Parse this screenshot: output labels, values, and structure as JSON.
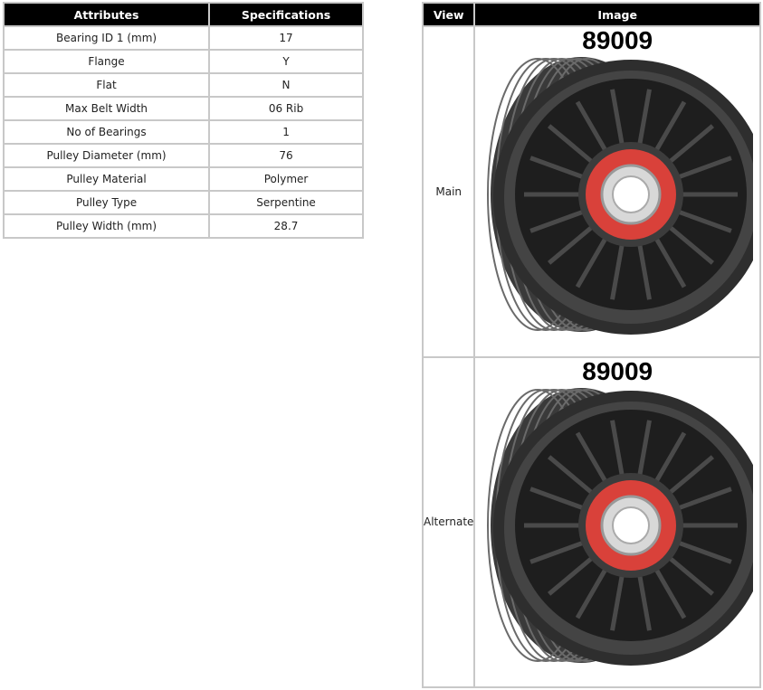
{
  "attributes_table": {
    "headers": [
      "Attributes",
      "Specifications"
    ],
    "rows": [
      [
        "Bearing ID 1 (mm)",
        "17"
      ],
      [
        "Flange",
        "Y"
      ],
      [
        "Flat",
        "N"
      ],
      [
        "Max Belt Width",
        "06 Rib"
      ],
      [
        "No of Bearings",
        "1"
      ],
      [
        "Pulley Diameter (mm)",
        "76"
      ],
      [
        "Pulley Material",
        "Polymer"
      ],
      [
        "Pulley Type",
        "Serpentine"
      ],
      [
        "Pulley Width (mm)",
        "28.7"
      ]
    ]
  },
  "image_table": {
    "headers": [
      "View",
      "Image"
    ],
    "rows": [
      {
        "view": "Main",
        "part_number": "89009"
      },
      {
        "view": "Alternate",
        "part_number": "89009"
      }
    ]
  },
  "colors": {
    "header_bg": "#000000",
    "border": "#c8c8c8",
    "bearing_seal": "#d9413a"
  }
}
